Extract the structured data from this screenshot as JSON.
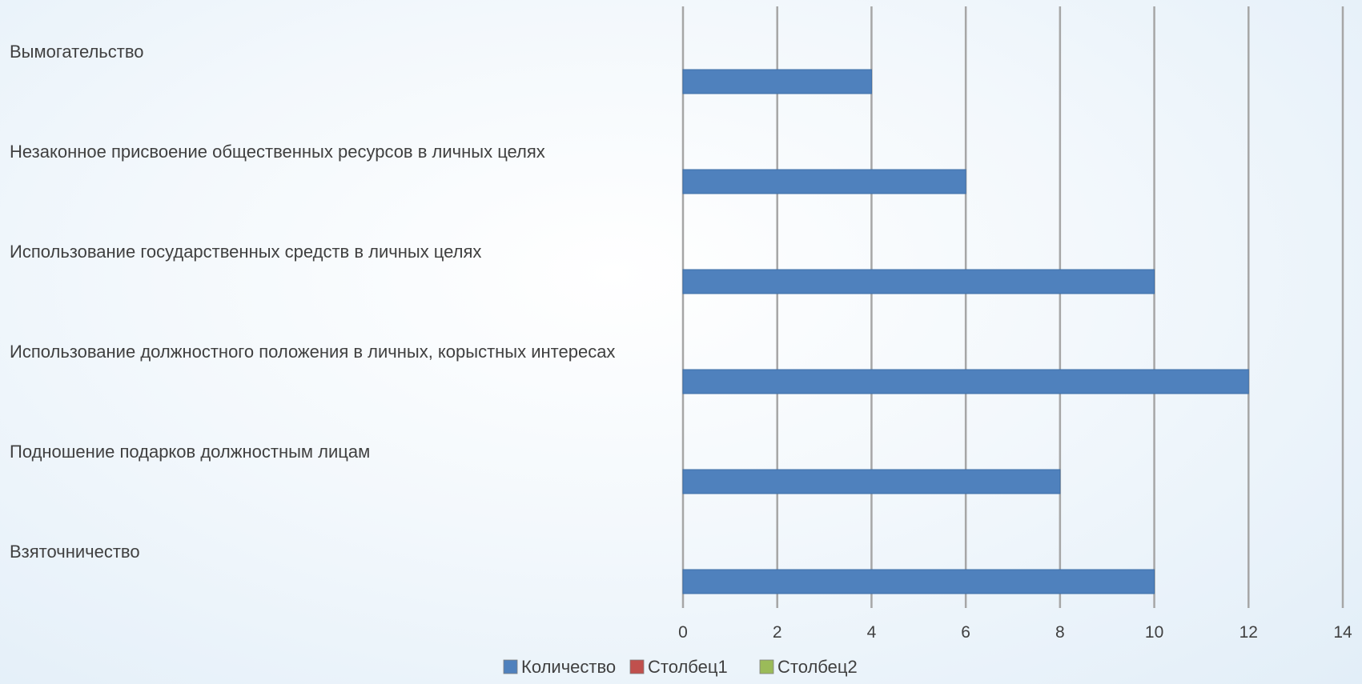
{
  "chart_data": {
    "type": "bar",
    "orientation": "horizontal",
    "categories": [
      "Вымогательство",
      "Незаконное присвоение общественных ресурсов в личных целях",
      "Использование государственных средств в личных целях",
      "Использование должностного положения в личных, корыстных интересах",
      "Подношение подарков должностным лицам",
      "Взяточничество"
    ],
    "series": [
      {
        "name": "Количество",
        "color": "#4f81bd",
        "values": [
          4,
          6,
          10,
          12,
          8,
          10
        ]
      },
      {
        "name": "Столбец1",
        "color": "#c0504d",
        "values": [
          null,
          null,
          null,
          null,
          null,
          null
        ]
      },
      {
        "name": "Столбец2",
        "color": "#9bbb59",
        "values": [
          null,
          null,
          null,
          null,
          null,
          null
        ]
      }
    ],
    "xlim": [
      0,
      14
    ],
    "xticks": [
      "0",
      "2",
      "4",
      "6",
      "8",
      "10",
      "12",
      "14"
    ],
    "grid": "vertical",
    "legend_position": "bottom",
    "title": "",
    "xlabel": "",
    "ylabel": ""
  }
}
